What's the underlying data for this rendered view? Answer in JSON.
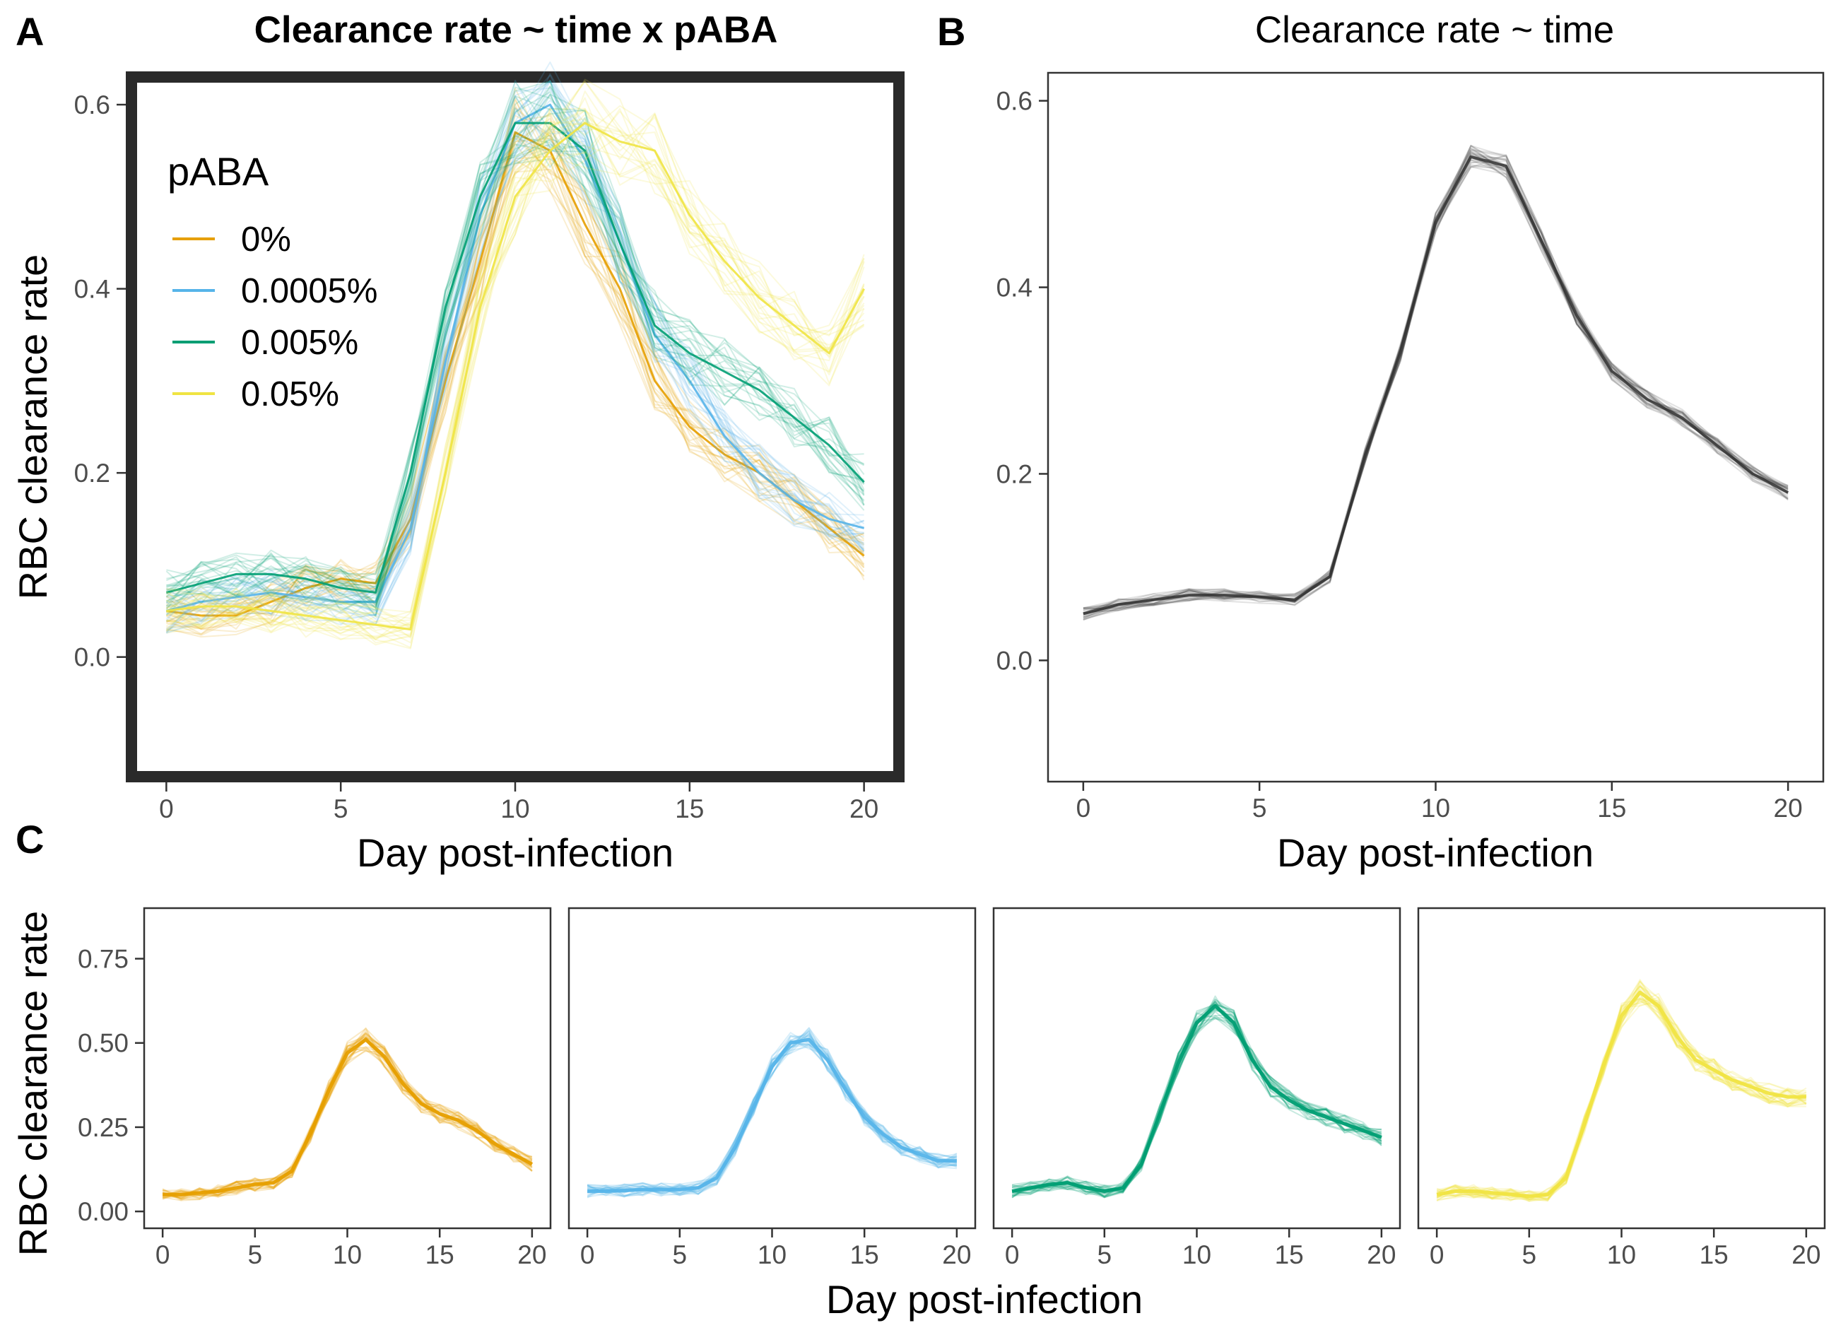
{
  "chart_data": [
    {
      "panel": "A",
      "type": "line",
      "title": "Clearance rate ~ time x pABA",
      "xlabel": "Day post-infection",
      "ylabel": "RBC clearance rate",
      "xlim": [
        -1,
        21
      ],
      "ylim": [
        -0.13,
        0.63
      ],
      "xticks": [
        "0",
        "5",
        "10",
        "15",
        "20"
      ],
      "yticks": [
        "0.0",
        "0.2",
        "0.4",
        "0.6"
      ],
      "grid": false,
      "legend": {
        "title": "pABA",
        "placement": "top-left"
      },
      "x": [
        0,
        1,
        2,
        3,
        4,
        5,
        6,
        7,
        8,
        9,
        10,
        11,
        12,
        13,
        14,
        15,
        16,
        17,
        18,
        19,
        20
      ],
      "series": [
        {
          "name": "0%",
          "color": "#E69F00",
          "values": [
            0.05,
            0.045,
            0.045,
            0.06,
            0.075,
            0.085,
            0.08,
            0.15,
            0.3,
            0.43,
            0.57,
            0.55,
            0.47,
            0.4,
            0.3,
            0.25,
            0.22,
            0.2,
            0.17,
            0.14,
            0.11
          ]
        },
        {
          "name": "0.0005%",
          "color": "#56B4E9",
          "values": [
            0.05,
            0.06,
            0.065,
            0.07,
            0.065,
            0.06,
            0.06,
            0.14,
            0.32,
            0.48,
            0.58,
            0.6,
            0.54,
            0.45,
            0.35,
            0.3,
            0.24,
            0.2,
            0.17,
            0.15,
            0.14
          ]
        },
        {
          "name": "0.005%",
          "color": "#009E73",
          "values": [
            0.07,
            0.08,
            0.09,
            0.09,
            0.085,
            0.075,
            0.07,
            0.2,
            0.38,
            0.5,
            0.58,
            0.58,
            0.55,
            0.45,
            0.36,
            0.33,
            0.31,
            0.29,
            0.26,
            0.23,
            0.19
          ]
        },
        {
          "name": "0.05%",
          "color": "#F0E442",
          "values": [
            0.05,
            0.055,
            0.055,
            0.05,
            0.045,
            0.04,
            0.035,
            0.03,
            0.2,
            0.38,
            0.5,
            0.55,
            0.58,
            0.56,
            0.55,
            0.48,
            0.43,
            0.39,
            0.36,
            0.33,
            0.4
          ]
        }
      ]
    },
    {
      "panel": "B",
      "type": "line",
      "title": "Clearance rate ~ time",
      "xlabel": "Day post-infection",
      "ylabel": "",
      "xlim": [
        -1,
        21
      ],
      "ylim": [
        -0.13,
        0.63
      ],
      "xticks": [
        "0",
        "5",
        "10",
        "15",
        "20"
      ],
      "yticks": [
        "0.0",
        "0.2",
        "0.4",
        "0.6"
      ],
      "grid": false,
      "x": [
        0,
        1,
        2,
        3,
        4,
        5,
        6,
        7,
        8,
        9,
        10,
        11,
        12,
        13,
        14,
        15,
        16,
        17,
        18,
        19,
        20
      ],
      "series": [
        {
          "color": "#333333",
          "values": [
            0.05,
            0.06,
            0.065,
            0.07,
            0.07,
            0.068,
            0.065,
            0.09,
            0.22,
            0.33,
            0.47,
            0.54,
            0.53,
            0.45,
            0.37,
            0.31,
            0.28,
            0.26,
            0.23,
            0.2,
            0.18
          ]
        }
      ]
    },
    {
      "panel": "C",
      "type": "line",
      "xlabel": "Day post-infection",
      "ylabel": "RBC clearance rate",
      "xlim": [
        -1,
        21
      ],
      "ylim": [
        -0.05,
        0.9
      ],
      "xticks": [
        "0",
        "5",
        "10",
        "15",
        "20"
      ],
      "yticks": [
        "0.00",
        "0.25",
        "0.50",
        "0.75"
      ],
      "grid": false,
      "x": [
        0,
        1,
        2,
        3,
        4,
        5,
        6,
        7,
        8,
        9,
        10,
        11,
        12,
        13,
        14,
        15,
        16,
        17,
        18,
        19,
        20
      ],
      "facets": [
        {
          "color": "#E69F00",
          "values": [
            0.05,
            0.05,
            0.055,
            0.06,
            0.07,
            0.08,
            0.085,
            0.12,
            0.23,
            0.36,
            0.47,
            0.51,
            0.46,
            0.38,
            0.32,
            0.29,
            0.27,
            0.24,
            0.2,
            0.17,
            0.14
          ]
        },
        {
          "color": "#56B4E9",
          "values": [
            0.06,
            0.06,
            0.062,
            0.065,
            0.065,
            0.065,
            0.07,
            0.1,
            0.19,
            0.31,
            0.43,
            0.5,
            0.51,
            0.45,
            0.36,
            0.28,
            0.23,
            0.19,
            0.17,
            0.15,
            0.15
          ]
        },
        {
          "color": "#009E73",
          "values": [
            0.06,
            0.07,
            0.08,
            0.085,
            0.07,
            0.06,
            0.07,
            0.14,
            0.29,
            0.44,
            0.56,
            0.61,
            0.56,
            0.45,
            0.37,
            0.33,
            0.3,
            0.28,
            0.26,
            0.24,
            0.22
          ]
        },
        {
          "color": "#F0E442",
          "values": [
            0.05,
            0.06,
            0.06,
            0.055,
            0.05,
            0.045,
            0.05,
            0.1,
            0.26,
            0.43,
            0.58,
            0.65,
            0.61,
            0.52,
            0.45,
            0.42,
            0.39,
            0.37,
            0.35,
            0.34,
            0.34
          ]
        }
      ]
    }
  ],
  "panels": {
    "a_letter": "A",
    "b_letter": "B",
    "c_letter": "C"
  }
}
